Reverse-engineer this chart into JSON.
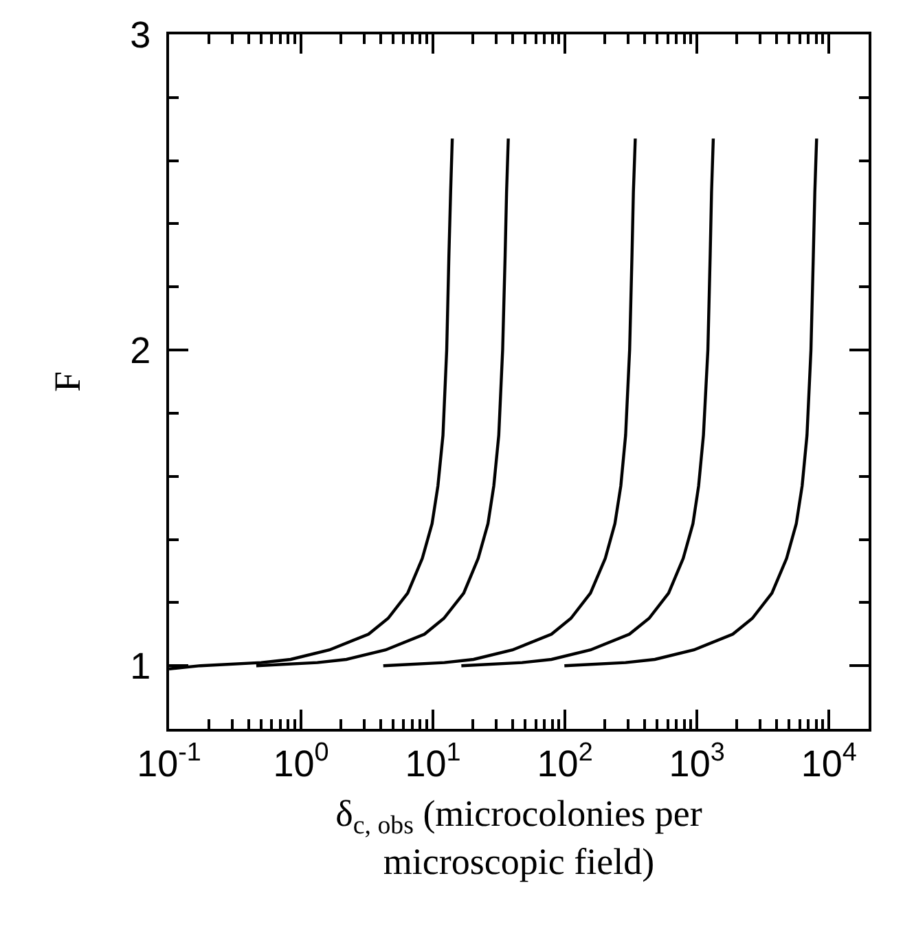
{
  "chart_data": {
    "type": "line",
    "xlabel": "δ$_{c, obs}$ (microcolonies per\nmicroscopic field)",
    "ylabel": "F",
    "log": "x",
    "grid": false,
    "marker": "none",
    "line_style": "solid",
    "xlim": [
      0.1,
      20000
    ],
    "ylim": [
      0.8,
      3
    ],
    "xticks": [
      {
        "value": 0.1,
        "label": "10$^{-1}$"
      },
      {
        "value": 0.2,
        "label": null
      },
      {
        "value": 0.3,
        "label": null
      },
      {
        "value": 0.4,
        "label": null
      },
      {
        "value": 0.5,
        "label": null
      },
      {
        "value": 0.6,
        "label": null
      },
      {
        "value": 0.7,
        "label": null
      },
      {
        "value": 0.8,
        "label": null
      },
      {
        "value": 0.9,
        "label": null
      },
      {
        "value": 1,
        "label": "10$^{0}$"
      },
      {
        "value": 2,
        "label": null
      },
      {
        "value": 3,
        "label": null
      },
      {
        "value": 4,
        "label": null
      },
      {
        "value": 5,
        "label": null
      },
      {
        "value": 6,
        "label": null
      },
      {
        "value": 7,
        "label": null
      },
      {
        "value": 8,
        "label": null
      },
      {
        "value": 9,
        "label": null
      },
      {
        "value": 10,
        "label": "10$^{1}$"
      },
      {
        "value": 20,
        "label": null
      },
      {
        "value": 30,
        "label": null
      },
      {
        "value": 40,
        "label": null
      },
      {
        "value": 50,
        "label": null
      },
      {
        "value": 60,
        "label": null
      },
      {
        "value": 70,
        "label": null
      },
      {
        "value": 80,
        "label": null
      },
      {
        "value": 90,
        "label": null
      },
      {
        "value": 100,
        "label": "10$^{2}$"
      },
      {
        "value": 200,
        "label": null
      },
      {
        "value": 300,
        "label": null
      },
      {
        "value": 400,
        "label": null
      },
      {
        "value": 500,
        "label": null
      },
      {
        "value": 600,
        "label": null
      },
      {
        "value": 700,
        "label": null
      },
      {
        "value": 800,
        "label": null
      },
      {
        "value": 900,
        "label": null
      },
      {
        "value": 1000,
        "label": "10$^{3}$"
      },
      {
        "value": 2000,
        "label": null
      },
      {
        "value": 3000,
        "label": null
      },
      {
        "value": 4000,
        "label": null
      },
      {
        "value": 5000,
        "label": null
      },
      {
        "value": 6000,
        "label": null
      },
      {
        "value": 7000,
        "label": null
      },
      {
        "value": 8000,
        "label": null
      },
      {
        "value": 9000,
        "label": null
      },
      {
        "value": 10000,
        "label": "10$^{4}$"
      }
    ],
    "yticks": [
      {
        "value": 0.8,
        "label": null
      },
      1,
      {
        "value": 1.2,
        "label": null
      },
      {
        "value": 1.4,
        "label": null
      },
      {
        "value": 1.6,
        "label": null
      },
      {
        "value": 1.8,
        "label": null
      },
      2,
      {
        "value": 2.2,
        "label": null
      },
      {
        "value": 2.4,
        "label": null
      },
      {
        "value": 2.6,
        "label": null
      },
      {
        "value": 2.8,
        "label": null
      },
      3
    ],
    "series": [
      {
        "color": "#000000",
        "x": [
          0.1,
          0.173,
          0.5,
          0.834,
          1.64,
          3.25,
          4.57,
          6.43,
          8.3,
          9.84,
          10.9,
          11.9,
          12.7,
          13.2,
          13.6,
          14.0
        ],
        "values": [
          0.99,
          1.0,
          1.01,
          1.02,
          1.05,
          1.1,
          1.15,
          1.23,
          1.34,
          1.45,
          1.57,
          1.73,
          2.0,
          2.3,
          2.5,
          2.67
        ]
      },
      {
        "color": "#000000",
        "x": [
          0.458,
          1.33,
          2.21,
          4.37,
          8.63,
          12.1,
          17.1,
          22.0,
          26.1,
          28.9,
          31.5,
          33.7,
          35.2,
          36.1,
          37.2
        ],
        "values": [
          1.0,
          1.01,
          1.02,
          1.05,
          1.1,
          1.15,
          1.23,
          1.34,
          1.45,
          1.57,
          1.73,
          2.0,
          2.3,
          2.5,
          2.67
        ]
      },
      {
        "color": "#000000",
        "x": [
          4.2,
          12.2,
          20.3,
          40.0,
          79.1,
          111,
          156,
          202,
          239,
          265,
          288,
          309,
          322,
          330,
          341
        ],
        "values": [
          1.0,
          1.01,
          1.02,
          1.05,
          1.1,
          1.15,
          1.23,
          1.34,
          1.45,
          1.57,
          1.73,
          2.0,
          2.3,
          2.5,
          2.67
        ]
      },
      {
        "color": "#000000",
        "x": [
          16.4,
          47.4,
          79.1,
          156,
          308,
          434,
          610,
          787,
          933,
          1030,
          1120,
          1210,
          1260,
          1290,
          1330
        ],
        "values": [
          1.0,
          1.01,
          1.02,
          1.05,
          1.1,
          1.15,
          1.23,
          1.34,
          1.45,
          1.57,
          1.73,
          2.0,
          2.3,
          2.5,
          2.67
        ]
      },
      {
        "color": "#000000",
        "x": [
          99,
          288,
          480,
          946,
          1870,
          2630,
          3700,
          4780,
          5660,
          6270,
          6820,
          7310,
          7620,
          7820,
          8070
        ],
        "values": [
          1.0,
          1.01,
          1.02,
          1.05,
          1.1,
          1.15,
          1.23,
          1.34,
          1.45,
          1.57,
          1.73,
          2.0,
          2.3,
          2.5,
          2.67
        ]
      }
    ]
  }
}
